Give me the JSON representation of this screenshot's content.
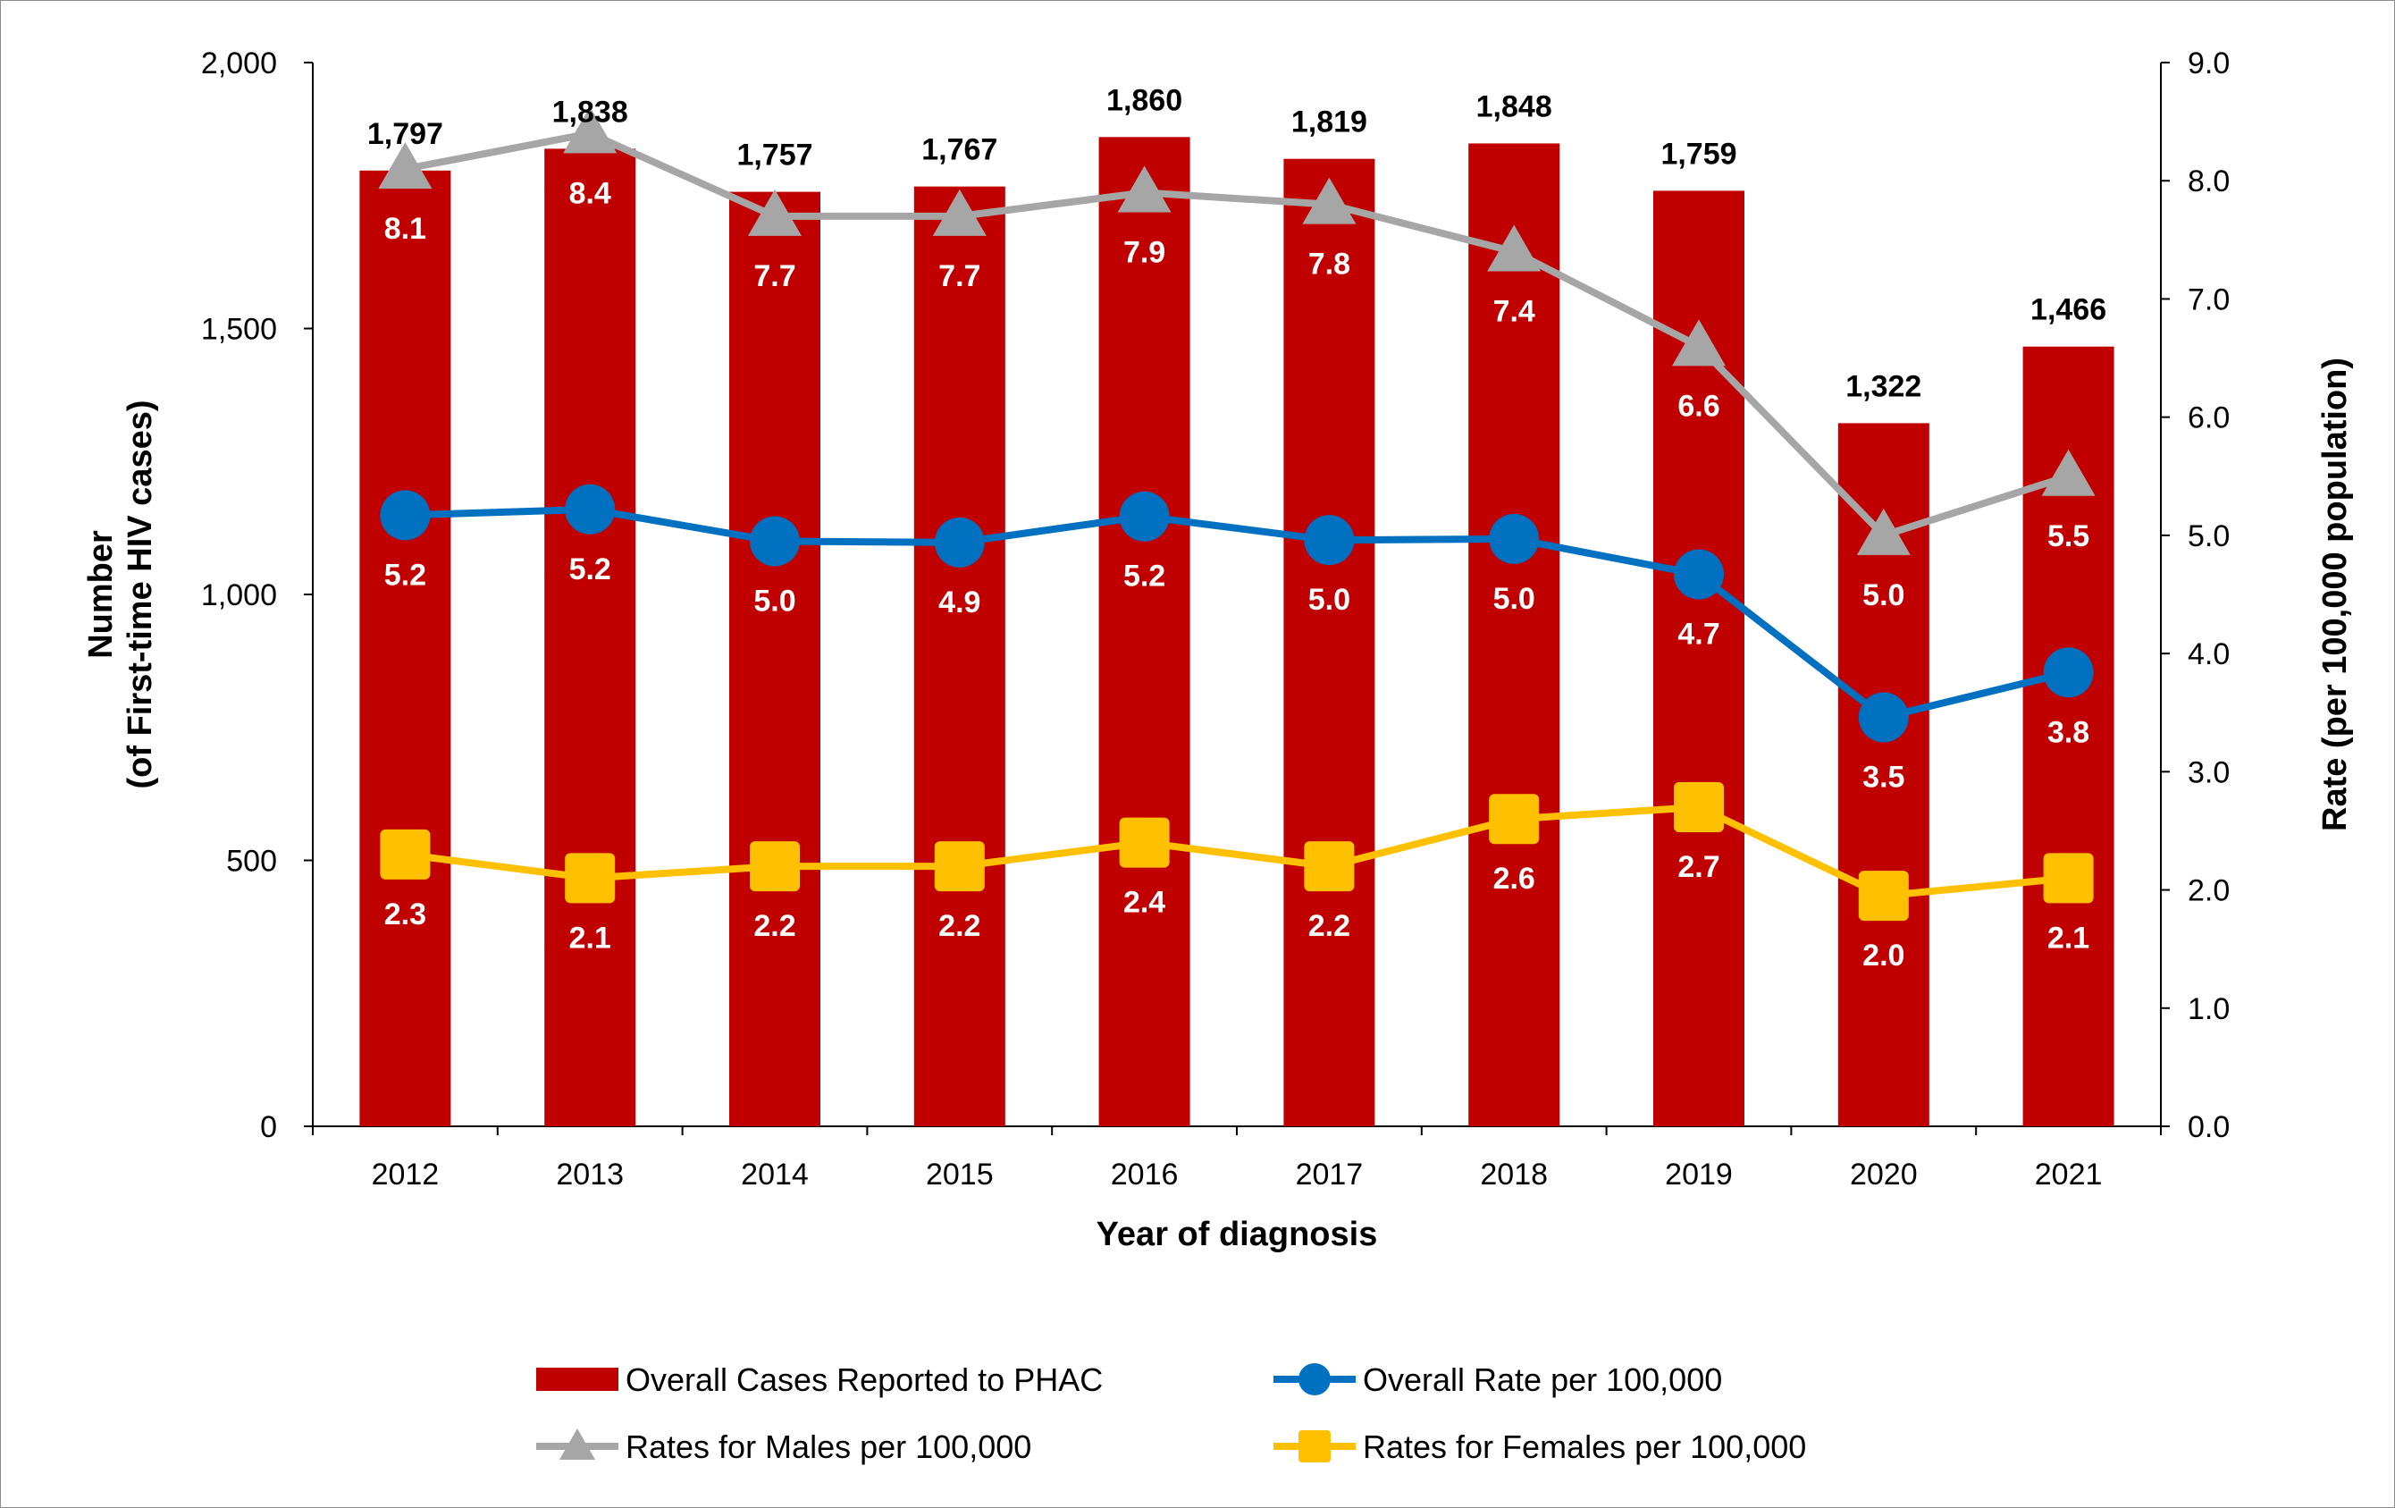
{
  "chart_data": {
    "type": "bar",
    "categories": [
      "2012",
      "2013",
      "2014",
      "2015",
      "2016",
      "2017",
      "2018",
      "2019",
      "2020",
      "2021"
    ],
    "x_label": "Year of diagnosis",
    "y_label_left": [
      "Number",
      "(of First-time HIV cases)"
    ],
    "y_label_right": "Rate (per 100,000 population)",
    "y_left_ticks": [
      "0",
      "500",
      "1,000",
      "1,500",
      "2,000"
    ],
    "y_left_range": [
      0,
      2000
    ],
    "y_right_ticks": [
      "0.0",
      "1.0",
      "2.0",
      "3.0",
      "4.0",
      "5.0",
      "6.0",
      "7.0",
      "8.0",
      "9.0"
    ],
    "y_right_range": [
      0,
      9
    ],
    "bars": {
      "name": "Overall Cases Reported to PHAC",
      "color": "#C00000",
      "values": [
        1797,
        1838,
        1757,
        1767,
        1860,
        1819,
        1848,
        1759,
        1322,
        1466
      ],
      "labels": [
        "1,797",
        "1,838",
        "1,757",
        "1,767",
        "1,860",
        "1,819",
        "1,848",
        "1,759",
        "1,322",
        "1,466"
      ]
    },
    "series": [
      {
        "name": "Overall Rate per 100,000",
        "color": "#0070C0",
        "marker": "circle",
        "values": [
          5.17,
          5.22,
          4.95,
          4.94,
          5.16,
          4.96,
          4.97,
          4.67,
          3.46,
          3.84
        ],
        "labels": [
          "5.2",
          "5.2",
          "5.0",
          "4.9",
          "5.2",
          "5.0",
          "5.0",
          "4.7",
          "3.5",
          "3.8"
        ]
      },
      {
        "name": "Rates for Males per 100,000",
        "color": "#A6A6A6",
        "marker": "triangle",
        "values": [
          8.1,
          8.4,
          7.7,
          7.7,
          7.9,
          7.8,
          7.4,
          6.6,
          5.0,
          5.5
        ],
        "labels": [
          "8.1",
          "8.4",
          "7.7",
          "7.7",
          "7.9",
          "7.8",
          "7.4",
          "6.6",
          "5.0",
          "5.5"
        ]
      },
      {
        "name": "Rates for Females per 100,000",
        "color": "#FFC000",
        "marker": "square",
        "values": [
          2.3,
          2.1,
          2.2,
          2.2,
          2.4,
          2.2,
          2.6,
          2.7,
          1.95,
          2.1
        ],
        "labels": [
          "2.3",
          "2.1",
          "2.2",
          "2.2",
          "2.4",
          "2.2",
          "2.6",
          "2.7",
          "2.0",
          "2.1"
        ]
      }
    ],
    "legend": [
      "Overall Cases Reported to PHAC",
      "Overall Rate per 100,000",
      "Rates for Males per 100,000",
      "Rates for Females per 100,000"
    ]
  }
}
